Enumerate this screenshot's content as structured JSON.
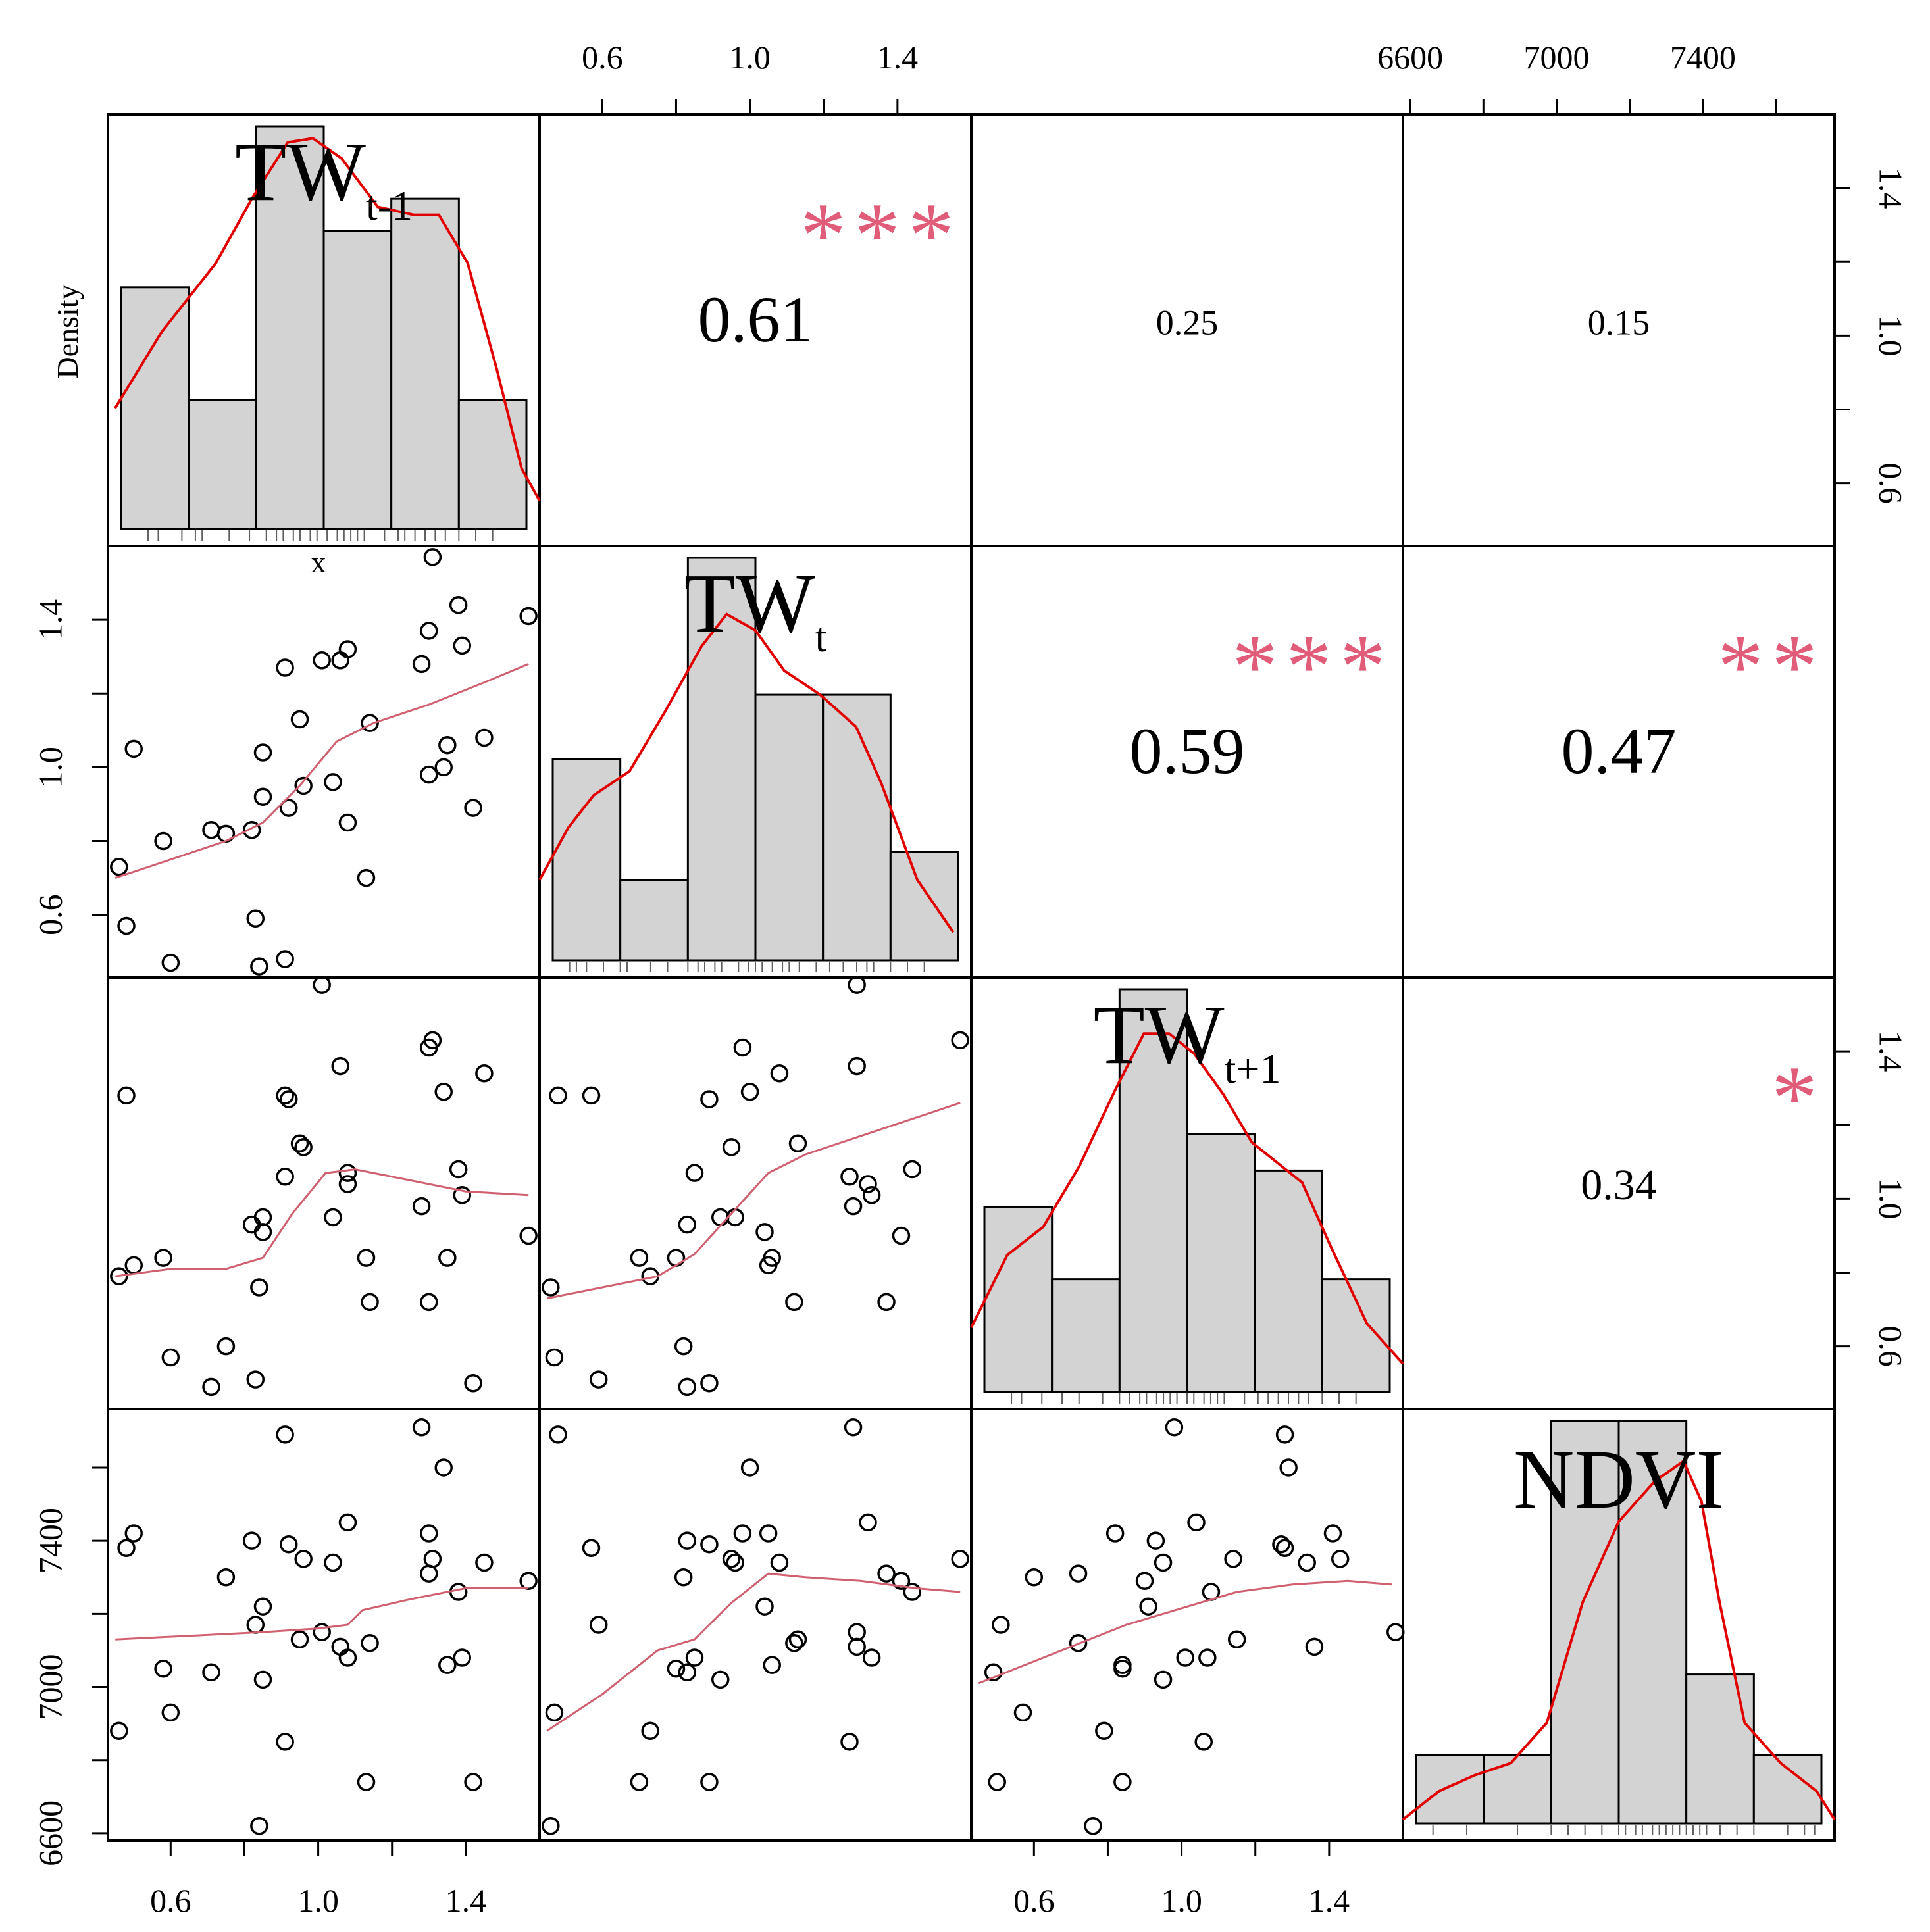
{
  "chart_data": {
    "type": "scatter",
    "subtype": "scatterplot-matrix",
    "variables": [
      "TW_t-1",
      "TW_t",
      "TW_t+1",
      "NDVI"
    ],
    "diagonal_labels": [
      {
        "main": "TW",
        "sub": "t-1"
      },
      {
        "main": "TW",
        "sub": "t"
      },
      {
        "main": "TW",
        "sub": "t+1"
      },
      {
        "main": "NDVI",
        "sub": ""
      }
    ],
    "first_panel_labels": {
      "ylabel": "Density",
      "xlabel": "x"
    },
    "axes": {
      "tw_ticks": [
        "0.6",
        "1.0",
        "1.4"
      ],
      "ndvi_ticks": [
        "6600",
        "7000",
        "7400"
      ],
      "tw_range": [
        0.43,
        1.6
      ],
      "ndvi_range": [
        6580,
        7760
      ],
      "top_axis": [
        "none",
        "tw",
        "none",
        "ndvi"
      ],
      "bottom_axis": [
        "tw",
        "none",
        "tw",
        "none"
      ],
      "left_axis": [
        "none",
        "tw",
        "none",
        "ndvi"
      ],
      "right_axis": [
        "tw",
        "none",
        "tw",
        "none"
      ]
    },
    "correlations": [
      {
        "row": 0,
        "col": 1,
        "value": "0.61",
        "stars": "***",
        "size": "large"
      },
      {
        "row": 0,
        "col": 2,
        "value": "0.25",
        "stars": "",
        "size": "small"
      },
      {
        "row": 0,
        "col": 3,
        "value": "0.15",
        "stars": "",
        "size": "small"
      },
      {
        "row": 1,
        "col": 2,
        "value": "0.59",
        "stars": "***",
        "size": "large"
      },
      {
        "row": 1,
        "col": 3,
        "value": "0.47",
        "stars": "**",
        "size": "large"
      },
      {
        "row": 2,
        "col": 3,
        "value": "0.34",
        "stars": "*",
        "size": "medium"
      }
    ],
    "histograms": [
      {
        "breaks": [
          0.4,
          0.6,
          0.8,
          1.0,
          1.2,
          1.4,
          1.6
        ],
        "heights": [
          0.6,
          0.32,
          1.0,
          0.74,
          0.82,
          0.32
        ],
        "density": [
          [
            0.42,
            0.3
          ],
          [
            0.55,
            0.49
          ],
          [
            0.7,
            0.66
          ],
          [
            0.8,
            0.82
          ],
          [
            0.9,
            0.96
          ],
          [
            0.97,
            0.97
          ],
          [
            1.05,
            0.92
          ],
          [
            1.15,
            0.8
          ],
          [
            1.25,
            0.78
          ],
          [
            1.32,
            0.78
          ],
          [
            1.4,
            0.66
          ],
          [
            1.48,
            0.4
          ],
          [
            1.55,
            0.15
          ],
          [
            1.6,
            0.07
          ]
        ],
        "rug": [
          0.48,
          0.51,
          0.58,
          0.62,
          0.64,
          0.72,
          0.78,
          0.83,
          0.86,
          0.88,
          0.91,
          0.93,
          0.96,
          0.98,
          1.01,
          1.04,
          1.06,
          1.08,
          1.1,
          1.12,
          1.18,
          1.22,
          1.24,
          1.27,
          1.3,
          1.33,
          1.36,
          1.4,
          1.45,
          1.5
        ]
      },
      {
        "breaks": [
          0.4,
          0.6,
          0.8,
          1.0,
          1.2,
          1.4,
          1.6
        ],
        "heights": [
          0.5,
          0.2,
          1.0,
          0.66,
          0.66,
          0.27
        ],
        "density": [
          [
            0.4,
            0.2
          ],
          [
            0.48,
            0.33
          ],
          [
            0.55,
            0.41
          ],
          [
            0.65,
            0.47
          ],
          [
            0.75,
            0.62
          ],
          [
            0.85,
            0.78
          ],
          [
            0.92,
            0.86
          ],
          [
            1.0,
            0.82
          ],
          [
            1.08,
            0.72
          ],
          [
            1.18,
            0.66
          ],
          [
            1.28,
            0.58
          ],
          [
            1.35,
            0.44
          ],
          [
            1.45,
            0.2
          ],
          [
            1.55,
            0.07
          ]
        ],
        "rug": [
          0.45,
          0.47,
          0.5,
          0.55,
          0.6,
          0.62,
          0.69,
          0.74,
          0.8,
          0.83,
          0.85,
          0.88,
          0.9,
          0.95,
          0.98,
          1.0,
          1.02,
          1.05,
          1.08,
          1.1,
          1.13,
          1.18,
          1.22,
          1.26,
          1.3,
          1.33,
          1.35,
          1.4,
          1.45,
          1.5
        ]
      },
      {
        "breaks": [
          0.4,
          0.6,
          0.8,
          1.0,
          1.2,
          1.4,
          1.6
        ],
        "heights": [
          0.46,
          0.28,
          1.0,
          0.64,
          0.55,
          0.28
        ],
        "density": [
          [
            0.4,
            0.16
          ],
          [
            0.5,
            0.34
          ],
          [
            0.6,
            0.41
          ],
          [
            0.7,
            0.56
          ],
          [
            0.8,
            0.75
          ],
          [
            0.88,
            0.89
          ],
          [
            0.95,
            0.89
          ],
          [
            1.02,
            0.84
          ],
          [
            1.1,
            0.74
          ],
          [
            1.18,
            0.62
          ],
          [
            1.25,
            0.57
          ],
          [
            1.32,
            0.52
          ],
          [
            1.4,
            0.36
          ],
          [
            1.5,
            0.17
          ],
          [
            1.6,
            0.07
          ]
        ],
        "rug": [
          0.48,
          0.51,
          0.57,
          0.63,
          0.68,
          0.75,
          0.8,
          0.83,
          0.86,
          0.88,
          0.91,
          0.93,
          0.95,
          0.97,
          1.0,
          1.02,
          1.05,
          1.07,
          1.09,
          1.11,
          1.17,
          1.21,
          1.24,
          1.27,
          1.3,
          1.33,
          1.36,
          1.4,
          1.45,
          1.5
        ]
      },
      {
        "breaks": [
          6500,
          6700,
          6900,
          7100,
          7300,
          7500,
          7700
        ],
        "heights": [
          0.17,
          0.17,
          1.0,
          1.0,
          0.37,
          0.17
        ],
        "density": [
          [
            6500,
            0.01
          ],
          [
            6600,
            0.08
          ],
          [
            6700,
            0.12
          ],
          [
            6800,
            0.15
          ],
          [
            6900,
            0.25
          ],
          [
            7000,
            0.55
          ],
          [
            7100,
            0.75
          ],
          [
            7200,
            0.85
          ],
          [
            7280,
            0.9
          ],
          [
            7330,
            0.8
          ],
          [
            7380,
            0.55
          ],
          [
            7450,
            0.25
          ],
          [
            7550,
            0.15
          ],
          [
            7650,
            0.08
          ],
          [
            7700,
            0.01
          ]
        ],
        "rug": [
          6550,
          6650,
          6800,
          6900,
          6950,
          7000,
          7050,
          7100,
          7120,
          7150,
          7170,
          7200,
          7220,
          7240,
          7260,
          7280,
          7300,
          7320,
          7340,
          7360,
          7400,
          7450,
          7500,
          7600,
          7650,
          7680
        ]
      }
    ],
    "series": [
      {
        "name": "",
        "TW_t-1": 0.46,
        "TW_t": 0.73,
        "TW_t+1": 0.79,
        "NDVI": 6880
      },
      {
        "name": "",
        "TW_t-1": 0.48,
        "TW_t": 0.57,
        "TW_t+1": 1.28,
        "NDVI": 7380
      },
      {
        "name": "",
        "TW_t-1": 0.5,
        "TW_t": 1.05,
        "TW_t+1": 0.82,
        "NDVI": 7420
      },
      {
        "name": "",
        "TW_t-1": 0.58,
        "TW_t": 0.8,
        "TW_t+1": 0.84,
        "NDVI": 7050
      },
      {
        "name": "",
        "TW_t-1": 0.6,
        "TW_t": 0.47,
        "TW_t+1": 0.57,
        "NDVI": 6930
      },
      {
        "name": "",
        "TW_t-1": 0.71,
        "TW_t": 0.83,
        "TW_t+1": 0.49,
        "NDVI": 7040
      },
      {
        "name": "",
        "TW_t-1": 0.75,
        "TW_t": 0.82,
        "TW_t+1": 0.6,
        "NDVI": 7300
      },
      {
        "name": "",
        "TW_t-1": 0.82,
        "TW_t": 0.83,
        "TW_t+1": 0.93,
        "NDVI": 7400
      },
      {
        "name": "",
        "TW_t-1": 0.83,
        "TW_t": 0.59,
        "TW_t+1": 0.51,
        "NDVI": 7170
      },
      {
        "name": "",
        "TW_t-1": 0.84,
        "TW_t": 0.46,
        "TW_t+1": 0.76,
        "NDVI": 6620
      },
      {
        "name": "",
        "TW_t-1": 0.85,
        "TW_t": 0.92,
        "TW_t+1": 0.95,
        "NDVI": 7020
      },
      {
        "name": "",
        "TW_t-1": 0.85,
        "TW_t": 1.04,
        "TW_t+1": 0.91,
        "NDVI": 7220
      },
      {
        "name": "",
        "TW_t-1": 0.91,
        "TW_t": 1.27,
        "TW_t+1": 1.06,
        "NDVI": 6850
      },
      {
        "name": "",
        "TW_t-1": 0.91,
        "TW_t": 0.48,
        "TW_t+1": 1.28,
        "NDVI": 7690
      },
      {
        "name": "",
        "TW_t-1": 0.92,
        "TW_t": 0.89,
        "TW_t+1": 1.27,
        "NDVI": 7390
      },
      {
        "name": "",
        "TW_t-1": 0.95,
        "TW_t": 1.13,
        "TW_t+1": 1.15,
        "NDVI": 7130
      },
      {
        "name": "",
        "TW_t-1": 0.96,
        "TW_t": 0.95,
        "TW_t+1": 1.14,
        "NDVI": 7350
      },
      {
        "name": "",
        "TW_t-1": 1.01,
        "TW_t": 1.29,
        "TW_t+1": 1.58,
        "NDVI": 7150
      },
      {
        "name": "",
        "TW_t-1": 1.04,
        "TW_t": 0.96,
        "TW_t+1": 0.95,
        "NDVI": 7340
      },
      {
        "name": "",
        "TW_t-1": 1.06,
        "TW_t": 1.29,
        "TW_t+1": 1.36,
        "NDVI": 7110
      },
      {
        "name": "",
        "TW_t-1": 1.08,
        "TW_t": 1.32,
        "TW_t+1": 1.04,
        "NDVI": 7450
      },
      {
        "name": "",
        "TW_t-1": 1.08,
        "TW_t": 0.85,
        "TW_t+1": 1.07,
        "NDVI": 7080
      },
      {
        "name": "",
        "TW_t-1": 1.13,
        "TW_t": 0.7,
        "TW_t+1": 0.84,
        "NDVI": 6740
      },
      {
        "name": "",
        "TW_t-1": 1.14,
        "TW_t": 1.12,
        "TW_t+1": 0.72,
        "NDVI": 7120
      },
      {
        "name": "",
        "TW_t-1": 1.28,
        "TW_t": 1.28,
        "TW_t+1": 0.98,
        "NDVI": 7710
      },
      {
        "name": "",
        "TW_t-1": 1.3,
        "TW_t": 0.98,
        "TW_t+1": 1.41,
        "NDVI": 7420
      },
      {
        "name": "",
        "TW_t-1": 1.3,
        "TW_t": 1.37,
        "TW_t+1": 0.72,
        "NDVI": 7310
      },
      {
        "name": "",
        "TW_t-1": 1.31,
        "TW_t": 1.57,
        "TW_t+1": 1.43,
        "NDVI": 7350
      },
      {
        "name": "",
        "TW_t-1": 1.34,
        "TW_t": 1.0,
        "TW_t+1": 1.29,
        "NDVI": 7600
      },
      {
        "name": "",
        "TW_t-1": 1.35,
        "TW_t": 1.06,
        "TW_t+1": 0.84,
        "NDVI": 7060
      },
      {
        "name": "",
        "TW_t-1": 1.38,
        "TW_t": 1.44,
        "TW_t+1": 1.08,
        "NDVI": 7260
      },
      {
        "name": "",
        "TW_t-1": 1.39,
        "TW_t": 1.33,
        "TW_t+1": 1.01,
        "NDVI": 7080
      },
      {
        "name": "",
        "TW_t-1": 1.42,
        "TW_t": 0.89,
        "TW_t+1": 0.5,
        "NDVI": 6740
      },
      {
        "name": "",
        "TW_t-1": 1.45,
        "TW_t": 1.08,
        "TW_t+1": 1.34,
        "NDVI": 7340
      },
      {
        "name": "",
        "TW_t-1": 1.57,
        "TW_t": 1.41,
        "TW_t+1": 0.9,
        "NDVI": 7290
      }
    ],
    "loess": {
      "1-0": [
        [
          0.45,
          0.7
        ],
        [
          0.6,
          0.75
        ],
        [
          0.75,
          0.8
        ],
        [
          0.85,
          0.85
        ],
        [
          0.95,
          0.95
        ],
        [
          1.05,
          1.07
        ],
        [
          1.15,
          1.12
        ],
        [
          1.3,
          1.17
        ],
        [
          1.45,
          1.23
        ],
        [
          1.57,
          1.28
        ]
      ],
      "2-0": [
        [
          0.45,
          0.79
        ],
        [
          0.6,
          0.81
        ],
        [
          0.75,
          0.81
        ],
        [
          0.85,
          0.84
        ],
        [
          0.93,
          0.96
        ],
        [
          1.02,
          1.07
        ],
        [
          1.1,
          1.08
        ],
        [
          1.25,
          1.05
        ],
        [
          1.4,
          1.02
        ],
        [
          1.57,
          1.01
        ]
      ],
      "2-1": [
        [
          0.45,
          0.73
        ],
        [
          0.6,
          0.76
        ],
        [
          0.75,
          0.79
        ],
        [
          0.85,
          0.85
        ],
        [
          0.95,
          0.96
        ],
        [
          1.05,
          1.07
        ],
        [
          1.15,
          1.12
        ],
        [
          1.3,
          1.17
        ],
        [
          1.45,
          1.22
        ],
        [
          1.57,
          1.26
        ]
      ],
      "3-0": [
        [
          0.45,
          7130
        ],
        [
          0.65,
          7140
        ],
        [
          0.85,
          7150
        ],
        [
          1.0,
          7160
        ],
        [
          1.08,
          7170
        ],
        [
          1.12,
          7210
        ],
        [
          1.25,
          7240
        ],
        [
          1.4,
          7270
        ],
        [
          1.57,
          7270
        ]
      ],
      "3-1": [
        [
          0.45,
          6880
        ],
        [
          0.6,
          6980
        ],
        [
          0.75,
          7100
        ],
        [
          0.85,
          7130
        ],
        [
          0.95,
          7230
        ],
        [
          1.05,
          7310
        ],
        [
          1.15,
          7300
        ],
        [
          1.3,
          7290
        ],
        [
          1.45,
          7270
        ],
        [
          1.57,
          7260
        ]
      ],
      "3-2": [
        [
          0.45,
          7010
        ],
        [
          0.6,
          7070
        ],
        [
          0.75,
          7130
        ],
        [
          0.85,
          7170
        ],
        [
          0.95,
          7200
        ],
        [
          1.05,
          7230
        ],
        [
          1.15,
          7260
        ],
        [
          1.3,
          7280
        ],
        [
          1.45,
          7290
        ],
        [
          1.57,
          7280
        ]
      ]
    }
  }
}
